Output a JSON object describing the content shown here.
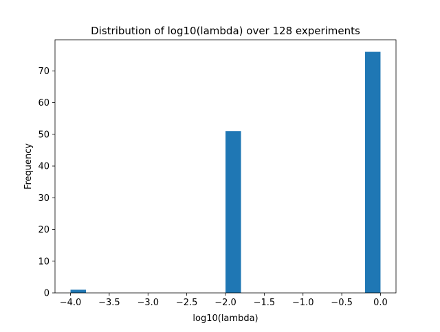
{
  "chart_data": {
    "type": "bar",
    "title": "Distribution of log10(lambda) over 128 experiments",
    "xlabel": "log10(lambda)",
    "ylabel": "Frequency",
    "xlim": [
      -4.2,
      0.2
    ],
    "ylim": [
      0,
      79.8
    ],
    "bar_color": "#1f77b4",
    "grid": false,
    "x_ticks": [
      {
        "value": -4.0,
        "label": "−4.0"
      },
      {
        "value": -3.5,
        "label": "−3.5"
      },
      {
        "value": -3.0,
        "label": "−3.0"
      },
      {
        "value": -2.5,
        "label": "−2.5"
      },
      {
        "value": -2.0,
        "label": "−2.0"
      },
      {
        "value": -1.5,
        "label": "−1.5"
      },
      {
        "value": -1.0,
        "label": "−1.0"
      },
      {
        "value": -0.5,
        "label": "−0.5"
      },
      {
        "value": 0.0,
        "label": "0.0"
      }
    ],
    "y_ticks": [
      {
        "value": 0,
        "label": "0"
      },
      {
        "value": 10,
        "label": "10"
      },
      {
        "value": 20,
        "label": "20"
      },
      {
        "value": 30,
        "label": "30"
      },
      {
        "value": 40,
        "label": "40"
      },
      {
        "value": 50,
        "label": "50"
      },
      {
        "value": 60,
        "label": "60"
      },
      {
        "value": 70,
        "label": "70"
      }
    ],
    "bins": [
      {
        "x0": -4.0,
        "x1": -3.8,
        "count": 1
      },
      {
        "x0": -2.0,
        "x1": -1.8,
        "count": 51
      },
      {
        "x0": -0.2,
        "x1": 0.0,
        "count": 76
      }
    ]
  }
}
